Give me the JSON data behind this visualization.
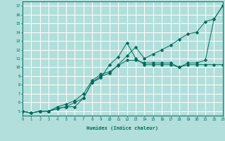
{
  "bg_color": "#b2dfdb",
  "grid_color": "#ffffff",
  "line_color": "#00695c",
  "xlabel": "Humidex (Indice chaleur)",
  "xlim": [
    0,
    23
  ],
  "ylim": [
    4.5,
    17.5
  ],
  "xticks": [
    0,
    1,
    2,
    3,
    4,
    5,
    6,
    7,
    8,
    9,
    10,
    11,
    12,
    13,
    14,
    15,
    16,
    17,
    18,
    19,
    20,
    21,
    22,
    23
  ],
  "yticks": [
    5,
    6,
    7,
    8,
    9,
    10,
    11,
    12,
    13,
    14,
    15,
    16,
    17
  ],
  "line1": {
    "x": [
      0,
      1,
      2,
      3,
      4,
      5,
      6,
      7,
      8,
      9,
      10,
      11,
      12,
      13,
      14,
      15,
      16,
      17,
      18,
      19,
      20,
      21,
      22,
      23
    ],
    "y": [
      5.0,
      4.8,
      5.0,
      5.0,
      5.3,
      5.5,
      5.5,
      6.5,
      8.3,
      8.8,
      10.3,
      11.2,
      12.8,
      11.0,
      10.3,
      10.3,
      10.3,
      10.3,
      10.0,
      10.3,
      10.3,
      10.3,
      10.3,
      10.3
    ]
  },
  "line2": {
    "x": [
      0,
      1,
      2,
      3,
      4,
      5,
      6,
      7,
      8,
      9,
      10,
      11,
      12,
      13,
      14,
      15,
      16,
      17,
      18,
      19,
      20,
      21,
      22,
      23
    ],
    "y": [
      5.0,
      4.8,
      5.0,
      5.0,
      5.3,
      5.5,
      6.0,
      6.5,
      8.3,
      9.0,
      9.3,
      10.3,
      11.3,
      12.3,
      11.0,
      11.5,
      12.0,
      12.5,
      13.2,
      13.8,
      14.0,
      15.2,
      15.5,
      17.0
    ]
  },
  "line3": {
    "x": [
      0,
      1,
      2,
      3,
      4,
      5,
      6,
      7,
      8,
      9,
      10,
      11,
      12,
      13,
      14,
      15,
      16,
      17,
      18,
      19,
      20,
      21,
      22,
      23
    ],
    "y": [
      5.0,
      4.8,
      5.0,
      5.0,
      5.5,
      5.8,
      6.2,
      7.0,
      8.5,
      9.2,
      9.5,
      10.2,
      10.8,
      10.8,
      10.5,
      10.5,
      10.5,
      10.5,
      10.0,
      10.5,
      10.5,
      10.8,
      15.5,
      17.0
    ]
  }
}
